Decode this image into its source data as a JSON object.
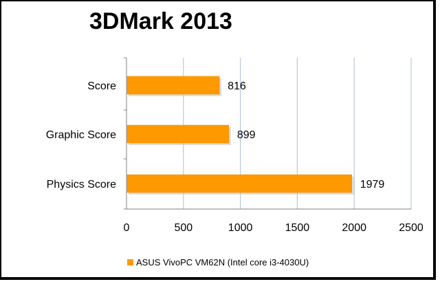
{
  "chart_data": {
    "type": "bar",
    "orientation": "horizontal",
    "title": "3DMark 2013",
    "categories": [
      "Score",
      "Graphic Score",
      "Physics Score"
    ],
    "series": [
      {
        "name": "ASUS VivoPC VM62N (Intel core i3-4030U)",
        "values": [
          816,
          899,
          1979
        ]
      }
    ],
    "xlim": [
      0,
      2500
    ],
    "xticks": [
      "0",
      "500",
      "1000",
      "1500",
      "2000",
      "2500"
    ],
    "xtick_values": [
      0,
      500,
      1000,
      1500,
      2000,
      2500
    ],
    "data_labels": [
      "816",
      "899",
      "1979"
    ],
    "grid": "vertical",
    "legend_position": "bottom",
    "colors": {
      "bar": "#FF9900",
      "grid": "#B8C8E0",
      "axis": "#808080"
    }
  }
}
